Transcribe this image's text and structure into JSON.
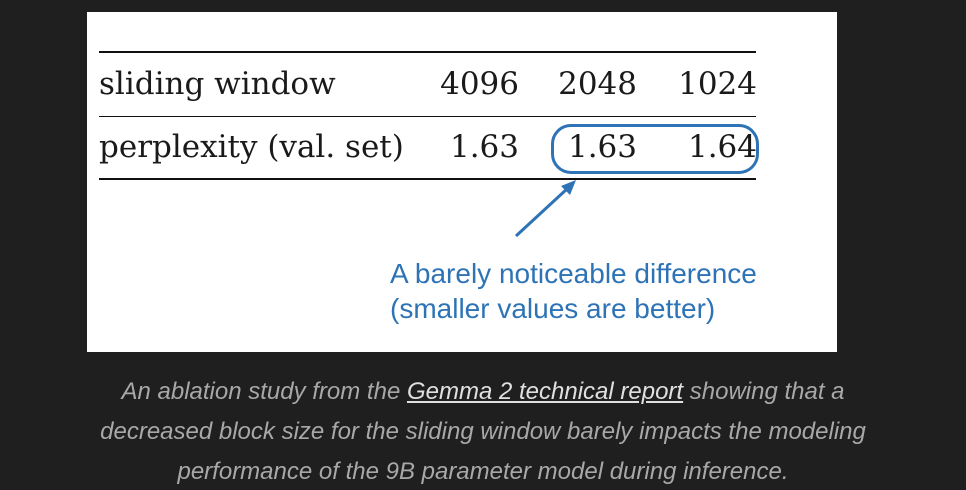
{
  "table": {
    "row1": {
      "label": "sliding window",
      "values": [
        "4096",
        "2048",
        "1024"
      ]
    },
    "row2": {
      "label": "perplexity (val. set)",
      "values": [
        "1.63",
        "1.63",
        "1.64"
      ]
    }
  },
  "annotation": {
    "line1": "A barely noticeable difference",
    "line2": "(smaller values are better)"
  },
  "caption": {
    "before": "An ablation study from the ",
    "link": "Gemma 2 technical report",
    "after_line1": " showing that a",
    "line2": "decreased block size for the sliding window barely impacts the modeling",
    "line3": "performance of the 9B parameter model during inference."
  },
  "colors": {
    "annotation": "#2e73b5",
    "background": "#1f1f1f"
  }
}
